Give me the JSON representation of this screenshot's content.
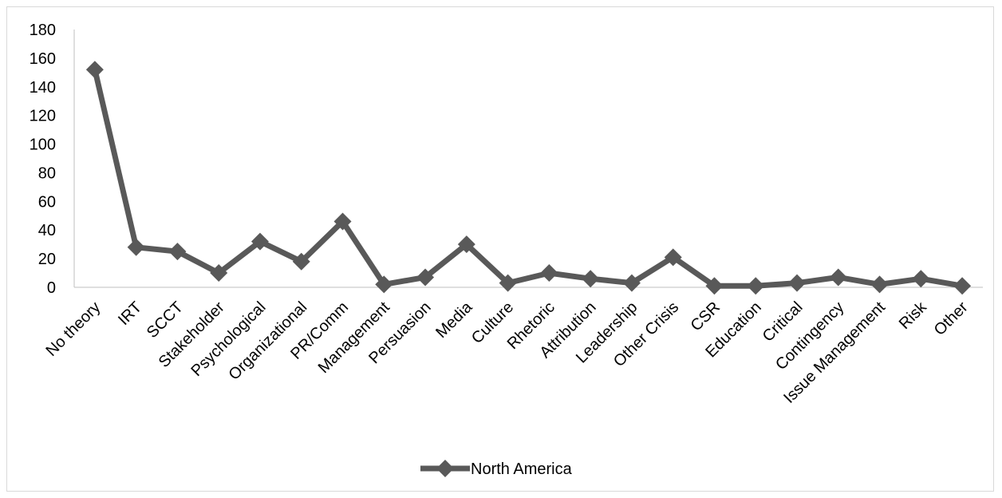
{
  "chart_data": {
    "type": "line",
    "title": "",
    "xlabel": "",
    "ylabel": "",
    "ylim": [
      0,
      180
    ],
    "yticks": [
      0,
      20,
      40,
      60,
      80,
      100,
      120,
      140,
      160,
      180
    ],
    "grid": false,
    "legend_position": "bottom",
    "categories": [
      "No theory",
      "IRT",
      "SCCT",
      "Stakeholder",
      "Psychological",
      "Organizational",
      "PR/Comm",
      "Management",
      "Persuasion",
      "Media",
      "Culture",
      "Rhetoric",
      "Attribution",
      "Leadership",
      "Other Crisis",
      "CSR",
      "Education",
      "Critical",
      "Contingency",
      "Issue Management",
      "Risk",
      "Other"
    ],
    "series": [
      {
        "name": "North America",
        "color": "#595959",
        "marker": "diamond",
        "values": [
          152,
          28,
          25,
          10,
          32,
          18,
          46,
          2,
          7,
          30,
          3,
          10,
          6,
          3,
          21,
          1,
          1,
          3,
          7,
          2,
          6,
          1
        ]
      }
    ]
  }
}
